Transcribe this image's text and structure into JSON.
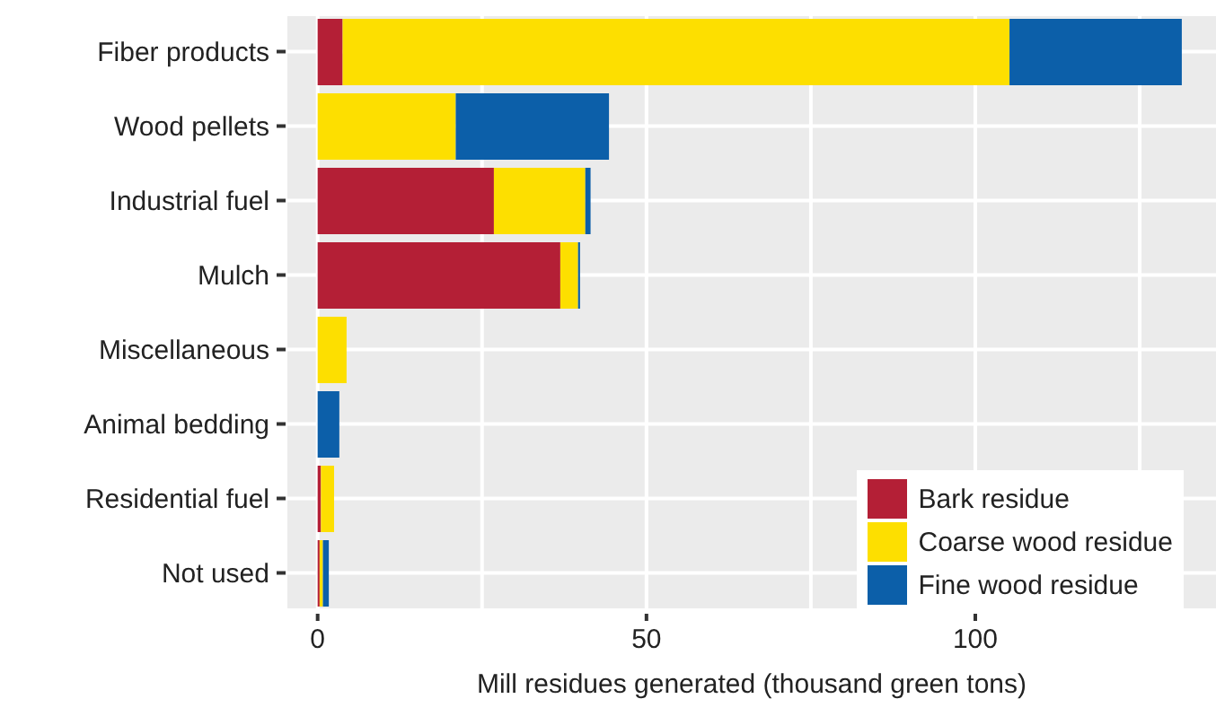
{
  "chart_data": {
    "type": "bar",
    "orientation": "horizontal",
    "stacked": true,
    "xlabel": "Mill residues generated (thousand green tons)",
    "categories": [
      "Fiber products",
      "Wood pellets",
      "Industrial fuel",
      "Mulch",
      "Miscellaneous",
      "Animal bedding",
      "Residential fuel",
      "Not used"
    ],
    "series": [
      {
        "name": "Bark residue",
        "color": "#b41f36",
        "values": [
          3.8,
          0,
          26.8,
          36.9,
          0,
          0,
          0.5,
          0.3
        ]
      },
      {
        "name": "Coarse wood residue",
        "color": "#fddf00",
        "values": [
          101.4,
          21.0,
          13.9,
          2.7,
          4.4,
          0,
          2.0,
          0.5
        ]
      },
      {
        "name": "Fine wood residue",
        "color": "#0c5fa9",
        "values": [
          26.2,
          23.3,
          0.8,
          0.3,
          0,
          3.3,
          0,
          0.9
        ]
      }
    ],
    "xlim": [
      -4.6,
      136.6
    ],
    "xticks": [
      0,
      {
        "value": 25,
        "label": null
      },
      50,
      {
        "value": 75,
        "label": null
      },
      100,
      {
        "value": 125,
        "label": null
      }
    ],
    "grid": true,
    "legend": "bottom right"
  }
}
